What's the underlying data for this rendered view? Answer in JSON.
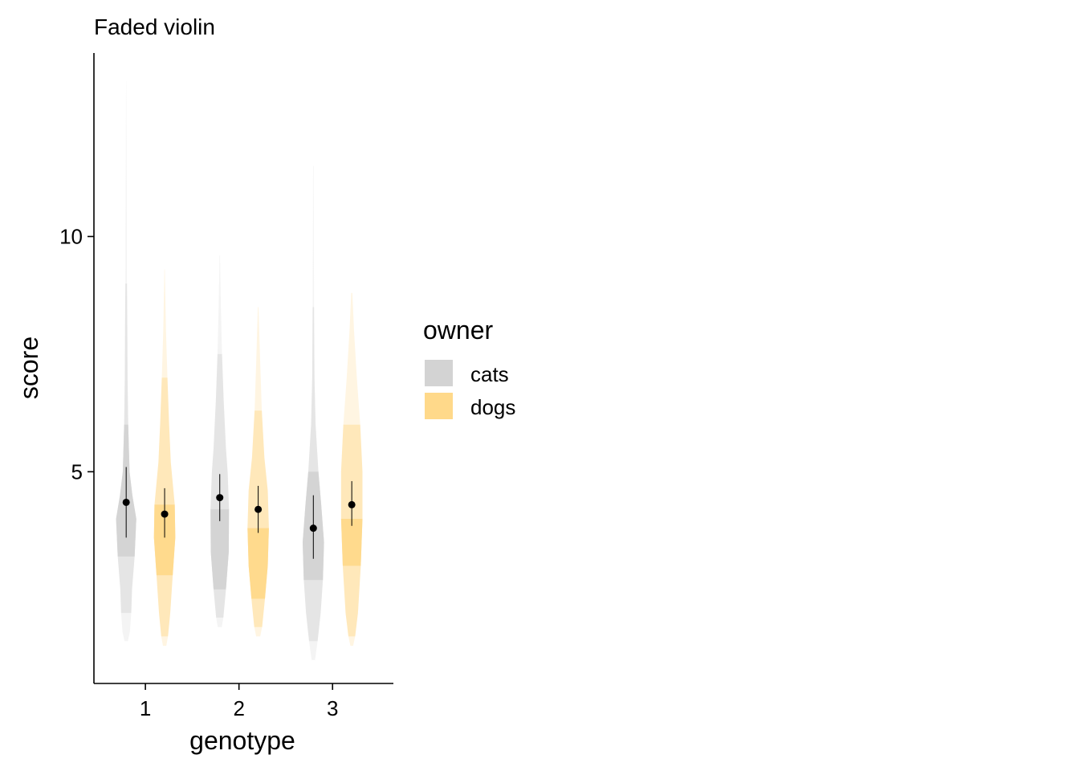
{
  "chart_data": {
    "type": "violin",
    "title": "Faded violin",
    "xlabel": "genotype",
    "ylabel": "score",
    "categories": [
      "1",
      "2",
      "3"
    ],
    "ylim": [
      0.5,
      13.9
    ],
    "yticks": [
      5,
      10
    ],
    "grid": false,
    "legend": {
      "title": "owner",
      "position": "right",
      "items": [
        {
          "label": "cats",
          "color": "#D3D3D3"
        },
        {
          "label": "dogs",
          "color": "#FFD98A"
        }
      ]
    },
    "series": [
      {
        "name": "cats",
        "color": "#D3D3D3",
        "groups": [
          {
            "category": "1",
            "mean": 4.35,
            "ci": [
              3.6,
              5.1
            ],
            "profile": [
              [
                1.4,
                0.15
              ],
              [
                1.6,
                0.33
              ],
              [
                2.0,
                0.45
              ],
              [
                2.5,
                0.52
              ],
              [
                3.2,
                0.75
              ],
              [
                4.0,
                0.9
              ],
              [
                4.5,
                0.55
              ],
              [
                5.0,
                0.3
              ],
              [
                6.0,
                0.18
              ],
              [
                7.0,
                0.12
              ],
              [
                8.0,
                0.1
              ],
              [
                9.0,
                0.07
              ],
              [
                10.5,
                0.05
              ],
              [
                12.0,
                0.03
              ],
              [
                13.3,
                0.01
              ]
            ]
          },
          {
            "category": "2",
            "mean": 4.45,
            "ci": [
              3.95,
              4.95
            ],
            "profile": [
              [
                1.7,
                0.18
              ],
              [
                1.9,
                0.32
              ],
              [
                2.5,
                0.55
              ],
              [
                3.3,
                0.8
              ],
              [
                4.2,
                0.82
              ],
              [
                5.0,
                0.7
              ],
              [
                5.5,
                0.55
              ],
              [
                6.5,
                0.35
              ],
              [
                7.5,
                0.2
              ],
              [
                8.5,
                0.1
              ],
              [
                9.6,
                0.02
              ]
            ]
          },
          {
            "category": "3",
            "mean": 3.8,
            "ci": [
              3.15,
              4.5
            ],
            "profile": [
              [
                1.0,
                0.15
              ],
              [
                1.4,
                0.38
              ],
              [
                2.0,
                0.65
              ],
              [
                2.7,
                0.85
              ],
              [
                3.5,
                0.95
              ],
              [
                4.3,
                0.7
              ],
              [
                5.0,
                0.45
              ],
              [
                6.0,
                0.2
              ],
              [
                7.0,
                0.1
              ],
              [
                8.5,
                0.06
              ],
              [
                10.0,
                0.04
              ],
              [
                11.5,
                0.02
              ]
            ]
          }
        ]
      },
      {
        "name": "dogs",
        "color": "#FFD98A",
        "groups": [
          {
            "category": "1",
            "mean": 4.1,
            "ci": [
              3.6,
              4.65
            ],
            "profile": [
              [
                1.3,
                0.15
              ],
              [
                1.5,
                0.3
              ],
              [
                2.0,
                0.5
              ],
              [
                2.8,
                0.72
              ],
              [
                3.6,
                0.95
              ],
              [
                4.3,
                0.9
              ],
              [
                5.2,
                0.55
              ],
              [
                6.0,
                0.4
              ],
              [
                7.0,
                0.25
              ],
              [
                8.0,
                0.12
              ],
              [
                9.3,
                0.02
              ]
            ]
          },
          {
            "category": "2",
            "mean": 4.2,
            "ci": [
              3.7,
              4.7
            ],
            "profile": [
              [
                1.5,
                0.18
              ],
              [
                1.7,
                0.35
              ],
              [
                2.3,
                0.6
              ],
              [
                3.0,
                0.85
              ],
              [
                3.8,
                0.95
              ],
              [
                4.6,
                0.85
              ],
              [
                5.3,
                0.55
              ],
              [
                6.3,
                0.32
              ],
              [
                7.3,
                0.18
              ],
              [
                8.5,
                0.03
              ]
            ]
          },
          {
            "category": "3",
            "mean": 4.3,
            "ci": [
              3.85,
              4.8
            ],
            "profile": [
              [
                1.3,
                0.12
              ],
              [
                1.5,
                0.3
              ],
              [
                2.0,
                0.55
              ],
              [
                3.0,
                0.8
              ],
              [
                4.0,
                0.95
              ],
              [
                5.0,
                0.95
              ],
              [
                6.0,
                0.75
              ],
              [
                7.0,
                0.45
              ],
              [
                8.0,
                0.2
              ],
              [
                8.8,
                0.05
              ]
            ]
          }
        ]
      }
    ]
  }
}
